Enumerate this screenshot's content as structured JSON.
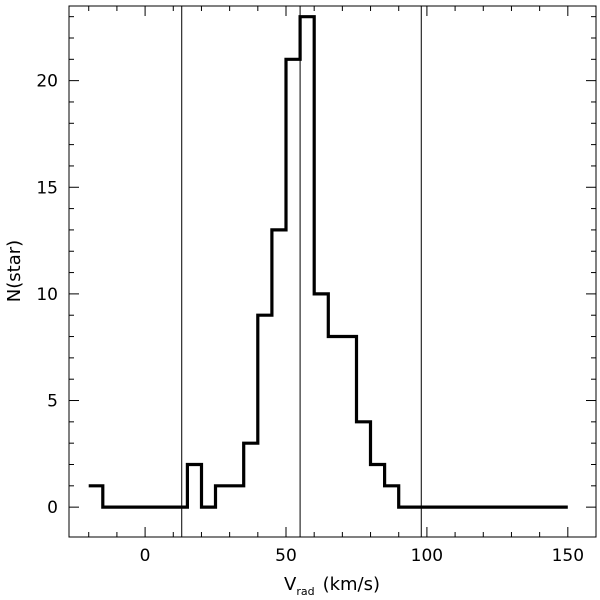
{
  "chart_data": {
    "type": "histogram",
    "xlabel_main": "V",
    "xlabel_sub": "rad",
    "xlabel_unit": "(km/s)",
    "ylabel": "N(star)",
    "xlim": [
      -27,
      160
    ],
    "ylim": [
      -1.4,
      23.5
    ],
    "xticks": [
      0,
      50,
      100,
      150
    ],
    "yticks": [
      0,
      5,
      10,
      15,
      20
    ],
    "bin_width": 5,
    "bins": [
      {
        "x": -20,
        "y": 1
      },
      {
        "x": -15,
        "y": 0
      },
      {
        "x": -10,
        "y": 0
      },
      {
        "x": -5,
        "y": 0
      },
      {
        "x": 0,
        "y": 0
      },
      {
        "x": 5,
        "y": 0
      },
      {
        "x": 10,
        "y": 0
      },
      {
        "x": 15,
        "y": 2
      },
      {
        "x": 20,
        "y": 0
      },
      {
        "x": 25,
        "y": 1
      },
      {
        "x": 30,
        "y": 1
      },
      {
        "x": 35,
        "y": 3
      },
      {
        "x": 40,
        "y": 9
      },
      {
        "x": 45,
        "y": 13
      },
      {
        "x": 50,
        "y": 21
      },
      {
        "x": 55,
        "y": 23
      },
      {
        "x": 60,
        "y": 10
      },
      {
        "x": 65,
        "y": 8
      },
      {
        "x": 70,
        "y": 8
      },
      {
        "x": 75,
        "y": 4
      },
      {
        "x": 80,
        "y": 2
      },
      {
        "x": 85,
        "y": 1
      },
      {
        "x": 90,
        "y": 0
      },
      {
        "x": 95,
        "y": 0
      },
      {
        "x": 100,
        "y": 0
      },
      {
        "x": 105,
        "y": 0
      },
      {
        "x": 110,
        "y": 0
      },
      {
        "x": 115,
        "y": 0
      },
      {
        "x": 120,
        "y": 0
      },
      {
        "x": 125,
        "y": 0
      },
      {
        "x": 130,
        "y": 0
      },
      {
        "x": 135,
        "y": 0
      },
      {
        "x": 140,
        "y": 0
      },
      {
        "x": 145,
        "y": 0
      }
    ],
    "vertical_lines": [
      13,
      55,
      98
    ]
  }
}
